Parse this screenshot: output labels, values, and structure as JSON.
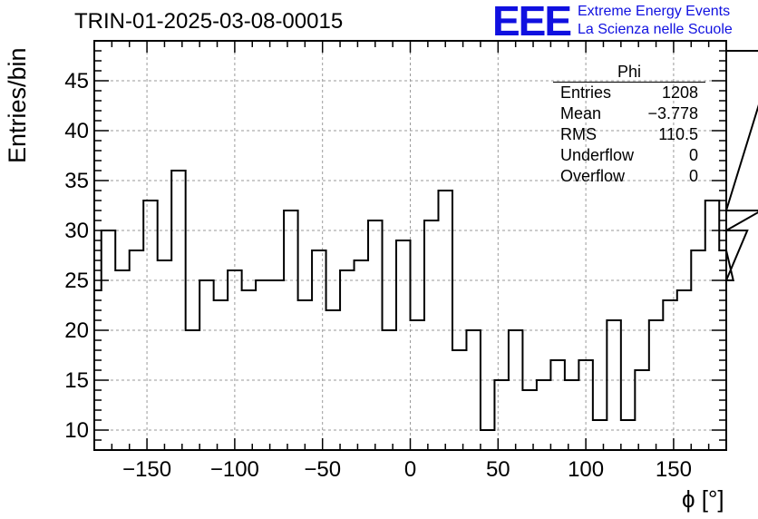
{
  "chart_data": {
    "type": "histogram",
    "title": "TRIN-01-2025-03-08-00015",
    "xlabel": "ϕ [°]",
    "ylabel": "Entries/bin",
    "xlim": [
      -180,
      180
    ],
    "ylim": [
      8,
      49
    ],
    "bin_width": 8,
    "bin_edges_start": -176,
    "values": [
      30,
      26,
      28,
      33,
      27,
      36,
      20,
      25,
      23,
      26,
      24,
      25,
      25,
      32,
      23,
      28,
      22,
      26,
      27,
      31,
      20,
      29,
      21,
      31,
      34,
      18,
      20,
      10,
      15,
      20,
      14,
      15,
      17,
      15,
      17,
      11,
      21,
      11,
      16,
      21,
      23,
      24,
      28,
      33,
      28,
      25,
      30,
      32,
      48
    ],
    "left_edge_value": 24,
    "x_ticks": [
      -150,
      -100,
      -50,
      0,
      50,
      100,
      150
    ],
    "x_tick_labels": [
      "−150",
      "−100",
      "−50",
      "0",
      "50",
      "100",
      "150"
    ],
    "y_ticks": [
      10,
      15,
      20,
      25,
      30,
      35,
      40,
      45
    ],
    "y_tick_labels": [
      "10",
      "15",
      "20",
      "25",
      "30",
      "35",
      "40",
      "45"
    ],
    "grid": true,
    "stats_box": {
      "title": "Phi",
      "placement": "top-right",
      "rows": [
        {
          "label": "Entries",
          "value": "1208"
        },
        {
          "label": "Mean",
          "value": "−3.778"
        },
        {
          "label": "RMS",
          "value": "110.5"
        },
        {
          "label": "Underflow",
          "value": "0"
        },
        {
          "label": "Overflow",
          "value": "0"
        }
      ]
    }
  },
  "logo": {
    "text": "EEE",
    "line1": "Extreme Energy Events",
    "line2": "La Scienza nelle Scuole",
    "color": "#1010e0"
  }
}
